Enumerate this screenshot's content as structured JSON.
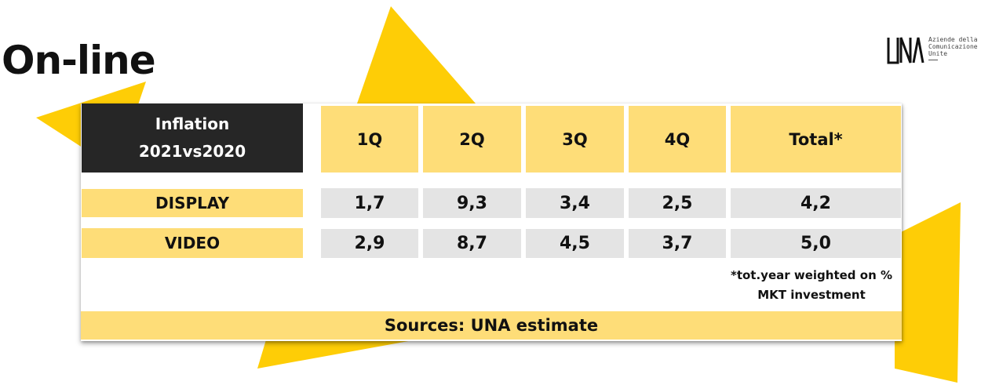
{
  "title": "On-line",
  "logo": {
    "wordmark": "UNA",
    "lines": [
      "Aziende della",
      "Comunicazione",
      "Unite"
    ]
  },
  "table": {
    "header_lines": [
      "Inflation",
      "2021vs2020"
    ],
    "columns": [
      "1Q",
      "2Q",
      "3Q",
      "4Q",
      "Total*"
    ],
    "rows": [
      {
        "label": "DISPLAY",
        "values": [
          "1,7",
          "9,3",
          "3,4",
          "2,5",
          "4,2"
        ]
      },
      {
        "label": "VIDEO",
        "values": [
          "2,9",
          "8,7",
          "4,5",
          "3,7",
          "5,0"
        ]
      }
    ]
  },
  "footnote_lines": [
    "*tot.year weighted on %",
    "MKT investment"
  ],
  "sources": "Sources: UNA estimate",
  "colors": {
    "accent_yellow": "#fecd06",
    "cell_yellow": "#fedd78",
    "header_dark": "#262626",
    "value_gray": "#e4e4e4"
  }
}
